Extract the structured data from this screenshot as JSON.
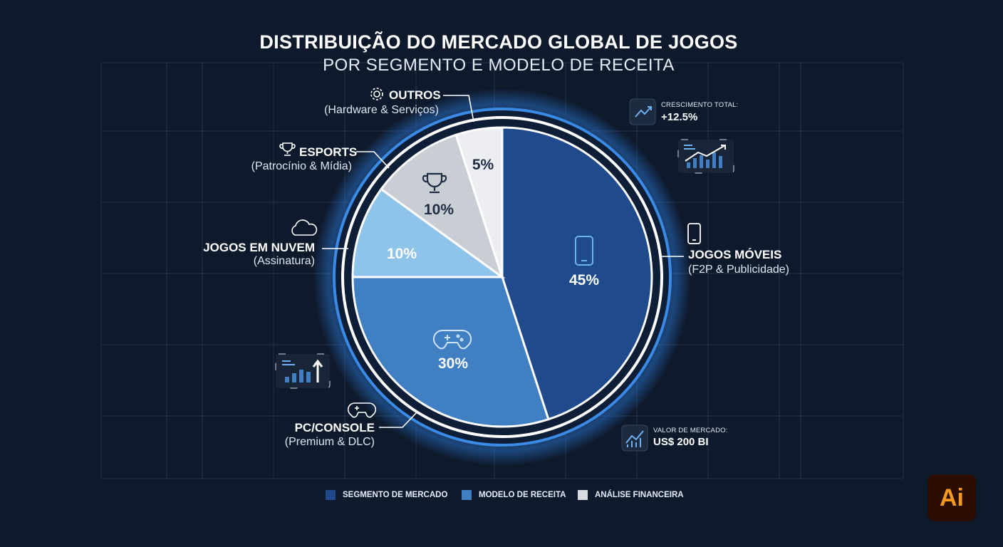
{
  "chart_data": {
    "type": "pie",
    "title": "DISTRIBUIÇÃO DO MERCADO GLOBAL DE JOGOS",
    "subtitle": "POR SEGMENTO E MODELO DE RECEITA",
    "slices": [
      {
        "label": "JOGOS MÓVEIS",
        "sub": "(F2P & Publicidade)",
        "value": 45,
        "display": "45%",
        "color": "#1f4a8c",
        "icon": "smartphone-icon"
      },
      {
        "label": "PC/CONSOLE",
        "sub": "(Premium & DLC)",
        "value": 30,
        "display": "30%",
        "color": "#3f7fc2",
        "icon": "gamepad-icon"
      },
      {
        "label": "JOGOS EM NUVEM",
        "sub": "(Assinatura)",
        "value": 10,
        "display": "10%",
        "color": "#8fc4ea",
        "icon": "cloud-icon"
      },
      {
        "label": "ESPORTS",
        "sub": "(Patrocínio & Mídia)",
        "value": 10,
        "display": "10%",
        "color": "#c9cdd4",
        "icon": "trophy-icon"
      },
      {
        "label": "OUTROS",
        "sub": "(Hardware & Serviços)",
        "value": 5,
        "display": "5%",
        "color": "#eceef1",
        "icon": "gear-icon"
      }
    ],
    "legend": [
      {
        "label": "SEGMENTO DE MERCADO",
        "color": "#1f4a8c"
      },
      {
        "label": "MODELO DE RECEITA",
        "color": "#3f7fc2"
      },
      {
        "label": "ANÁLISE FINANCEIRA",
        "color": "#d8dbe0"
      }
    ],
    "legend_position": "bottom",
    "grid": true
  },
  "stats": {
    "growth": {
      "caption": "CRESCIMENTO TOTAL:",
      "value": "+12.5%",
      "icon": "trend-up-icon"
    },
    "market": {
      "caption": "VALOR DE MERCADO:",
      "value": "US$ 200 BI",
      "icon": "trend-chart-icon"
    }
  },
  "logo": {
    "text": "Ai",
    "icon": "illustrator-logo"
  },
  "colors": {
    "background": "#0e1a2c",
    "accent": "#3f8fe0",
    "ring": "#ffffff"
  }
}
